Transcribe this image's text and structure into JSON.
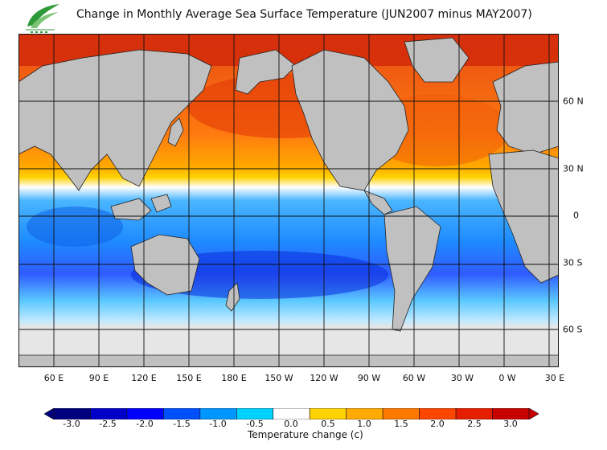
{
  "title": "Change in Monthly Average Sea Surface Temperature (JUN2007 minus MAY2007)",
  "map": {
    "longitude_labels": [
      "60 E",
      "90 E",
      "120 E",
      "150 E",
      "180 E",
      "150 W",
      "120 W",
      "90 W",
      "60 W",
      "30 W",
      "0 W",
      "30 E"
    ],
    "latitude_labels": [
      "60 N",
      "30 N",
      "0",
      "30 S",
      "60 S"
    ],
    "land_color": "#c0c0c0",
    "sea_ice_color": "#e6e6e6"
  },
  "colorbar": {
    "label": "Temperature change  (c)",
    "tick_labels": [
      "-3.0",
      "-2.5",
      "-2.0",
      "-1.5",
      "-1.0",
      "-0.5",
      "0.0",
      "0.5",
      "1.0",
      "1.5",
      "2.0",
      "2.5",
      "3.0"
    ],
    "colors": [
      "#00007f",
      "#0000c8",
      "#0000ff",
      "#0050ff",
      "#0096ff",
      "#00d2ff",
      "#ffffff",
      "#ffd200",
      "#ffaa00",
      "#ff7800",
      "#ff4600",
      "#e61e00",
      "#c80000"
    ],
    "low_arrow_color": "#00007f",
    "high_arrow_color": "#c80000"
  }
}
